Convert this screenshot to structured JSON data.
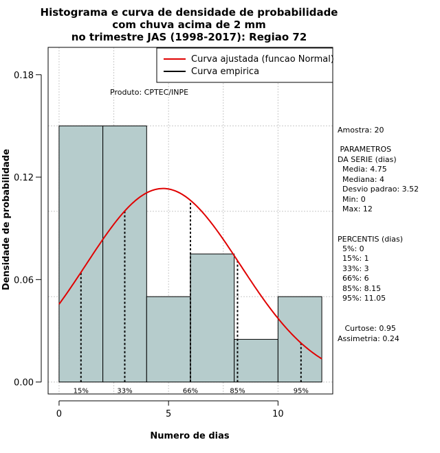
{
  "chart_data": {
    "type": "bar",
    "title": [
      "Histograma e curva de densidade de probabilidade",
      "com chuva acima de 2 mm",
      "no trimestre JAS (1998-2017): Regiao 72"
    ],
    "xlabel": "Numero de dias",
    "ylabel": "Densidade de probabilidade",
    "xlim": [
      -0.5,
      12.5
    ],
    "ylim": [
      -0.007,
      0.196
    ],
    "xticks": [
      0,
      5,
      10
    ],
    "yticks": [
      0.0,
      0.06,
      0.12,
      0.18
    ],
    "ytick_labels": [
      "0.00",
      "0.06",
      "0.12",
      "0.18"
    ],
    "xgrid": [
      0,
      2.5,
      5,
      7.5,
      10
    ],
    "ygrid": [
      0.0,
      0.05,
      0.1,
      0.15
    ],
    "bins": [
      {
        "x0": 0,
        "x1": 2,
        "density": 0.15
      },
      {
        "x0": 2,
        "x1": 4,
        "density": 0.15
      },
      {
        "x0": 4,
        "x1": 6,
        "density": 0.05
      },
      {
        "x0": 6,
        "x1": 8,
        "density": 0.075
      },
      {
        "x0": 8,
        "x1": 10,
        "density": 0.025
      },
      {
        "x0": 10,
        "x1": 12,
        "density": 0.05
      }
    ],
    "bar_color": "#b6cccc",
    "normal_fit": {
      "mean": 4.75,
      "sd": 3.52,
      "xmin": 0,
      "xmax": 12,
      "color": "#e00000"
    },
    "percentiles": [
      {
        "label": "15%",
        "value": 1
      },
      {
        "label": "33%",
        "value": 3
      },
      {
        "label": "66%",
        "value": 6
      },
      {
        "label": "85%",
        "value": 8.15
      },
      {
        "label": "95%",
        "value": 11.05
      }
    ],
    "legend": [
      {
        "label": "Curva ajustada (funcao Normal)",
        "color": "#e00000"
      },
      {
        "label": "Curva empirica",
        "color": "#000000"
      }
    ],
    "annotation": "Produto: CPTEC/INPE"
  },
  "stats": {
    "amostra": "Amostra: 20",
    "param_title": [
      " PARAMETROS",
      "DA SERIE (dias)"
    ],
    "params": [
      "  Media: 4.75",
      "  Mediana: 4",
      "  Desvio padrao: 3.52",
      "  Min: 0",
      "  Max: 12"
    ],
    "pct_title": "PERCENTIS (dias)",
    "pcts": [
      "  5%: 0",
      "  15%: 1",
      "  33%: 3",
      "  66%: 6",
      "  85%: 8.15",
      "  95%: 11.05"
    ],
    "shape": [
      "   Curtose: 0.95",
      "Assimetria: 0.24"
    ]
  }
}
